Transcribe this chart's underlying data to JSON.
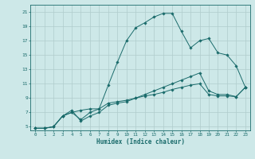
{
  "xlabel": "Humidex (Indice chaleur)",
  "background_color": "#cde8e8",
  "line_color": "#1a6b6b",
  "grid_color": "#b0cccc",
  "xlim": [
    -0.5,
    23.5
  ],
  "ylim": [
    4.5,
    22.0
  ],
  "xticks": [
    0,
    1,
    2,
    3,
    4,
    5,
    6,
    7,
    8,
    9,
    10,
    11,
    12,
    13,
    14,
    15,
    16,
    17,
    18,
    19,
    20,
    21,
    22,
    23
  ],
  "yticks": [
    5,
    7,
    9,
    11,
    13,
    15,
    17,
    19,
    21
  ],
  "line1_x": [
    0,
    1,
    2,
    3,
    4,
    5,
    6,
    7,
    8,
    9,
    10,
    11,
    12,
    13,
    14,
    15,
    16,
    17,
    18,
    19,
    20,
    21,
    22,
    23
  ],
  "line1_y": [
    4.8,
    4.8,
    5.0,
    6.5,
    7.0,
    6.0,
    7.0,
    7.5,
    10.8,
    14.0,
    17.0,
    18.8,
    19.5,
    20.3,
    20.8,
    20.8,
    18.3,
    16.0,
    17.0,
    17.3,
    15.3,
    15.0,
    13.5,
    10.5
  ],
  "line2_x": [
    0,
    1,
    2,
    3,
    4,
    5,
    6,
    7,
    8,
    9,
    10,
    11,
    12,
    13,
    14,
    15,
    16,
    17,
    18,
    19,
    20,
    21,
    22,
    23
  ],
  "line2_y": [
    4.8,
    4.8,
    5.0,
    6.5,
    7.0,
    7.3,
    7.5,
    7.5,
    8.3,
    8.5,
    8.7,
    9.0,
    9.3,
    9.5,
    9.8,
    10.2,
    10.5,
    10.8,
    11.0,
    9.5,
    9.3,
    9.3,
    9.2,
    10.5
  ],
  "line3_x": [
    0,
    1,
    2,
    3,
    4,
    5,
    6,
    7,
    8,
    9,
    10,
    11,
    12,
    13,
    14,
    15,
    16,
    17,
    18,
    19,
    20,
    21,
    22,
    23
  ],
  "line3_y": [
    4.8,
    4.8,
    5.0,
    6.5,
    7.3,
    5.8,
    6.5,
    7.0,
    8.0,
    8.3,
    8.5,
    9.0,
    9.5,
    10.0,
    10.5,
    11.0,
    11.5,
    12.0,
    12.5,
    10.0,
    9.5,
    9.5,
    9.2,
    10.5
  ]
}
